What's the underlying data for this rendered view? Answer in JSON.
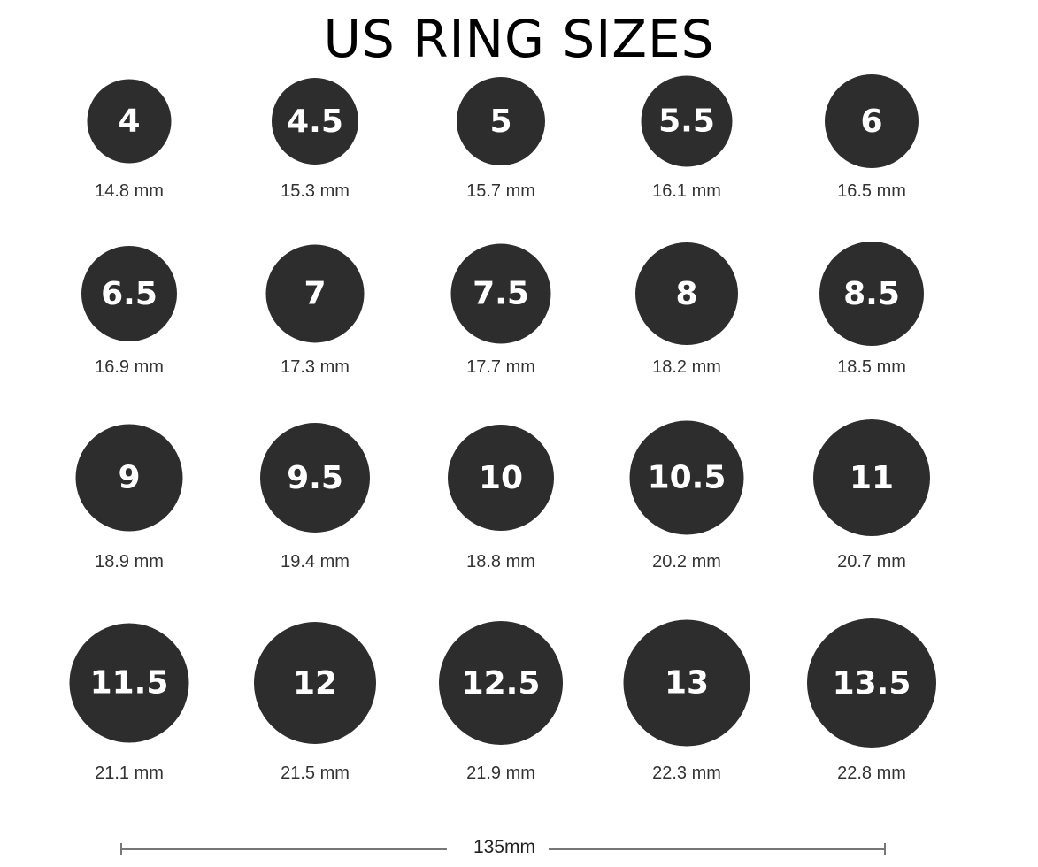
{
  "title": "US RING SIZES",
  "colors": {
    "circle": "#2d2d2d",
    "circle_text": "#ffffff",
    "label_text": "#333333"
  },
  "rings": [
    {
      "size": "4",
      "diameter": "14.8 mm",
      "mm": 14.8
    },
    {
      "size": "4.5",
      "diameter": "15.3 mm",
      "mm": 15.3
    },
    {
      "size": "5",
      "diameter": "15.7 mm",
      "mm": 15.7
    },
    {
      "size": "5.5",
      "diameter": "16.1 mm",
      "mm": 16.1
    },
    {
      "size": "6",
      "diameter": "16.5 mm",
      "mm": 16.5
    },
    {
      "size": "6.5",
      "diameter": "16.9 mm",
      "mm": 16.9
    },
    {
      "size": "7",
      "diameter": "17.3 mm",
      "mm": 17.3
    },
    {
      "size": "7.5",
      "diameter": "17.7 mm",
      "mm": 17.7
    },
    {
      "size": "8",
      "diameter": "18.2 mm",
      "mm": 18.2
    },
    {
      "size": "8.5",
      "diameter": "18.5 mm",
      "mm": 18.5
    },
    {
      "size": "9",
      "diameter": "18.9 mm",
      "mm": 18.9
    },
    {
      "size": "9.5",
      "diameter": "19.4 mm",
      "mm": 19.4
    },
    {
      "size": "10",
      "diameter": "18.8 mm",
      "mm": 18.8
    },
    {
      "size": "10.5",
      "diameter": "20.2 mm",
      "mm": 20.2
    },
    {
      "size": "11",
      "diameter": "20.7 mm",
      "mm": 20.7
    },
    {
      "size": "11.5",
      "diameter": "21.1 mm",
      "mm": 21.1
    },
    {
      "size": "12",
      "diameter": "21.5 mm",
      "mm": 21.5
    },
    {
      "size": "12.5",
      "diameter": "21.9 mm",
      "mm": 21.9
    },
    {
      "size": "13",
      "diameter": "22.3 mm",
      "mm": 22.3
    },
    {
      "size": "13.5",
      "diameter": "22.8 mm",
      "mm": 22.8
    }
  ],
  "scale_bar": {
    "label": "135mm"
  }
}
